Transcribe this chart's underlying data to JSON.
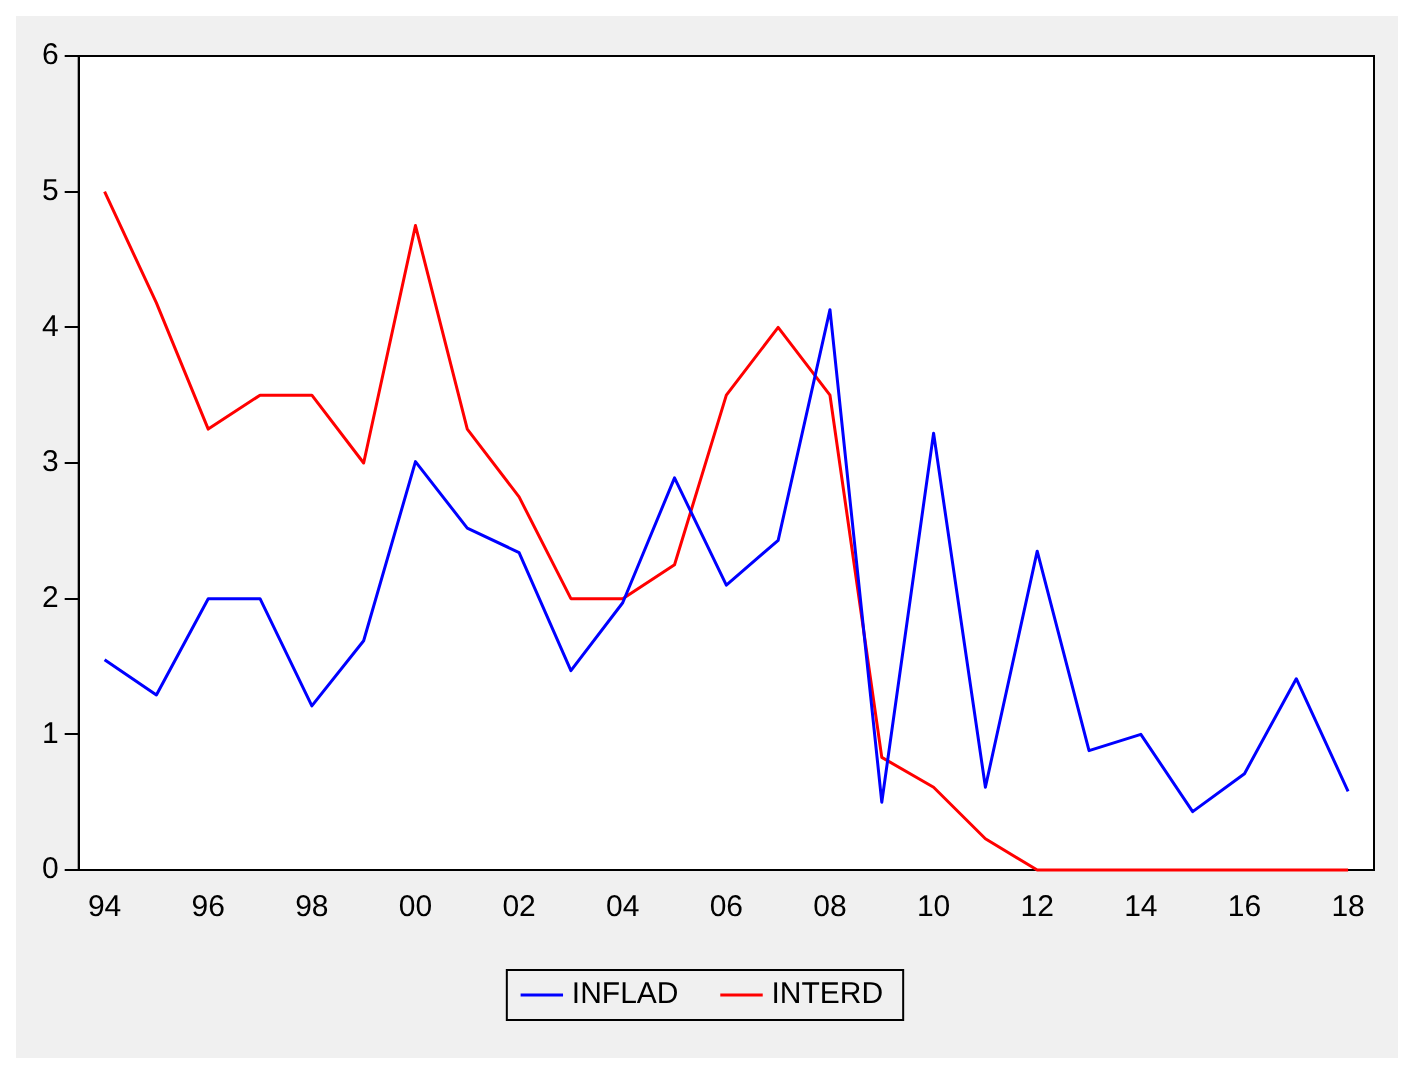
{
  "chart_data": {
    "type": "line",
    "categories": [
      "94",
      null,
      "96",
      null,
      "98",
      null,
      "00",
      null,
      "02",
      null,
      "04",
      null,
      "06",
      null,
      "08",
      null,
      "10",
      null,
      "12",
      null,
      "14",
      null,
      "16",
      null,
      "18"
    ],
    "series": [
      {
        "name": "INFLAD",
        "color": "#0000ff",
        "values": [
          1.55,
          1.29,
          2.0,
          2.0,
          1.21,
          1.69,
          3.01,
          2.52,
          2.34,
          1.47,
          1.97,
          2.89,
          2.1,
          2.43,
          4.13,
          0.5,
          3.22,
          0.61,
          2.35,
          0.88,
          1.0,
          0.43,
          0.71,
          1.41,
          0.58
        ]
      },
      {
        "name": "INTERD",
        "color": "#ff0000",
        "values": [
          5.0,
          4.18,
          3.25,
          3.5,
          3.5,
          3.0,
          4.75,
          3.25,
          2.75,
          2.0,
          2.0,
          2.25,
          3.5,
          4.0,
          3.5,
          0.83,
          0.61,
          0.23,
          0,
          0,
          0,
          0,
          0,
          0,
          0
        ]
      }
    ],
    "ylim": [
      0,
      6
    ],
    "yticks": [
      0,
      1,
      2,
      3,
      4,
      5,
      6
    ],
    "grid": false,
    "legend": "bottom",
    "marker": "none",
    "line_style": "solid"
  }
}
